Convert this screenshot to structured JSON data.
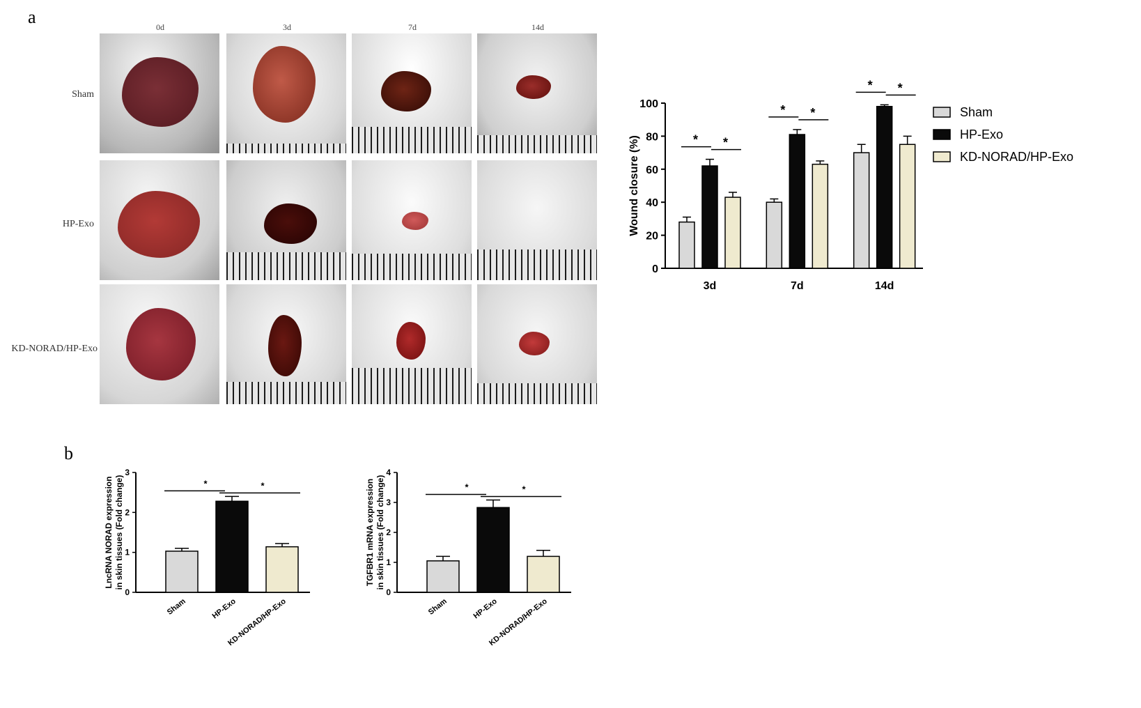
{
  "panels": {
    "a": "a",
    "b": "b"
  },
  "photo_grid": {
    "columns": [
      "0d",
      "3d",
      "7d",
      "14d"
    ],
    "rows": [
      "Sham",
      "HP-Exo",
      "KD-NORAD/HP-Exo"
    ]
  },
  "chart_data": [
    {
      "type": "bar",
      "categories": [
        "3d",
        "7d",
        "14d"
      ],
      "series": [
        {
          "name": "Sham",
          "values": [
            28,
            40,
            70
          ],
          "errors": [
            3,
            2,
            5
          ],
          "color": "#d9d9d9"
        },
        {
          "name": "HP-Exo",
          "values": [
            62,
            81,
            98
          ],
          "errors": [
            4,
            3,
            1
          ],
          "color": "#0a0a0a"
        },
        {
          "name": "KD-NORAD/HP-Exo",
          "values": [
            43,
            63,
            75
          ],
          "errors": [
            3,
            2,
            5
          ],
          "color": "#efeacf"
        }
      ],
      "ylabel": "Wound closure (%)",
      "yticks": [
        "0",
        "20",
        "40",
        "60",
        "80",
        "100"
      ],
      "ylim": [
        0,
        100
      ],
      "legend": "right",
      "annotations": [
        {
          "label": "*",
          "category": "3d"
        },
        {
          "label": "*",
          "category": "3d"
        },
        {
          "label": "*",
          "category": "7d"
        },
        {
          "label": "*",
          "category": "7d"
        },
        {
          "label": "*",
          "category": "14d"
        },
        {
          "label": "*",
          "category": "14d"
        }
      ]
    },
    {
      "type": "bar",
      "categories": [
        "Sham",
        "HP-Exo",
        "KD-NORAD/HP-Exo"
      ],
      "values": [
        1.03,
        2.28,
        1.14
      ],
      "errors": [
        0.07,
        0.12,
        0.08
      ],
      "colors": [
        "#d9d9d9",
        "#0a0a0a",
        "#efeacf"
      ],
      "ylabel_line1": "LncRNA NORAD expression",
      "ylabel_line2": "in skin tissues (Fold change)",
      "yticks": [
        "0",
        "1",
        "2",
        "3"
      ],
      "ylim": [
        0,
        3
      ],
      "annotations": [
        {
          "label": "*"
        },
        {
          "label": "*"
        }
      ]
    },
    {
      "type": "bar",
      "categories": [
        "Sham",
        "HP-Exo",
        "KD-NORAD/HP-Exo"
      ],
      "values": [
        1.05,
        2.83,
        1.2
      ],
      "errors": [
        0.15,
        0.25,
        0.2
      ],
      "colors": [
        "#d9d9d9",
        "#0a0a0a",
        "#efeacf"
      ],
      "ylabel_line1": "TGFBR1 mRNA expression",
      "ylabel_line2": "in skin tissues (Fold change)",
      "yticks": [
        "0",
        "1",
        "2",
        "3",
        "4"
      ],
      "ylim": [
        0,
        4
      ],
      "annotations": [
        {
          "label": "*"
        },
        {
          "label": "*"
        }
      ]
    }
  ]
}
